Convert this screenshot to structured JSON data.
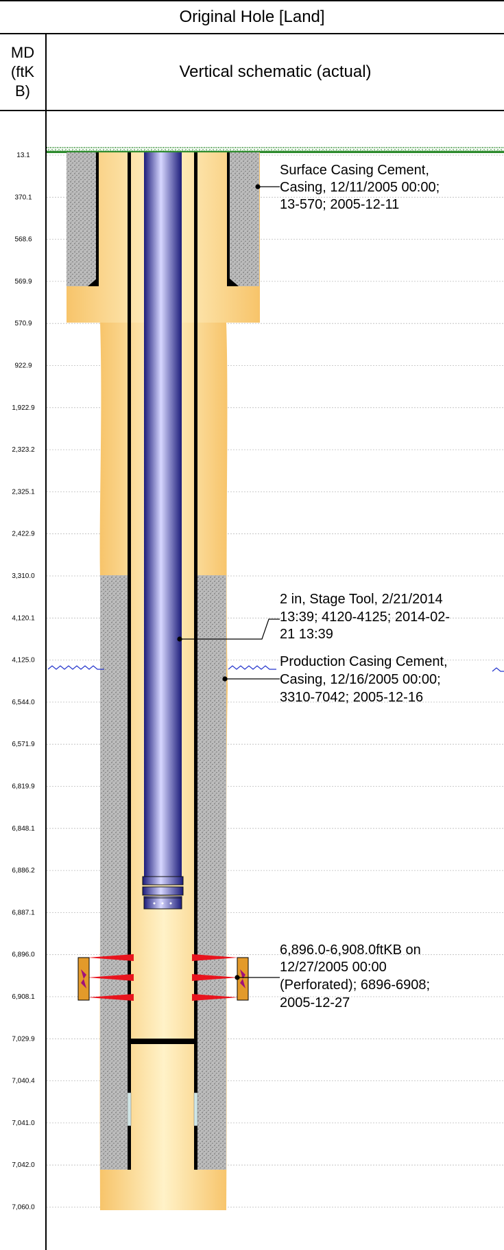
{
  "header": {
    "title": "Original Hole [Land]",
    "md_label": "MD (ftKB)",
    "md_line1": "MD",
    "md_line2": "(ftK",
    "md_line3": "B)",
    "schematic_label": "Vertical schematic (actual)"
  },
  "depths": [
    "13.1",
    "370.1",
    "568.6",
    "569.9",
    "570.9",
    "922.9",
    "1,922.9",
    "2,323.2",
    "2,325.1",
    "2,422.9",
    "3,310.0",
    "4,120.1",
    "4,125.0",
    "6,544.0",
    "6,571.9",
    "6,819.9",
    "6,848.1",
    "6,886.2",
    "6,887.1",
    "6,896.0",
    "6,908.1",
    "7,029.9",
    "7,040.4",
    "7,041.0",
    "7,042.0",
    "7,060.0"
  ],
  "annotations": {
    "surface_cement": [
      "Surface Casing Cement,",
      "Casing, 12/11/2005 00:00;",
      "13-570; 2005-12-11"
    ],
    "stage_tool": [
      "2 in, Stage Tool, 2/21/2014",
      "13:39; 4120-4125; 2014-02-",
      "21 13:39"
    ],
    "production_cement": [
      "Production Casing Cement,",
      "Casing, 12/16/2005 00:00;",
      "3310-7042; 2005-12-16"
    ],
    "perforation": [
      "6,896.0-6,908.0ftKB on",
      "12/27/2005 00:00",
      "(Perforated); 6896-6908;",
      "2005-12-27"
    ]
  },
  "colors": {
    "hole": "#f8cc78",
    "cement": "#bdbdbd",
    "tubing": "#3a3aa8",
    "grass": "#2e8b2e",
    "perf": "#e8141e",
    "fluid_level": "#2233cc"
  }
}
